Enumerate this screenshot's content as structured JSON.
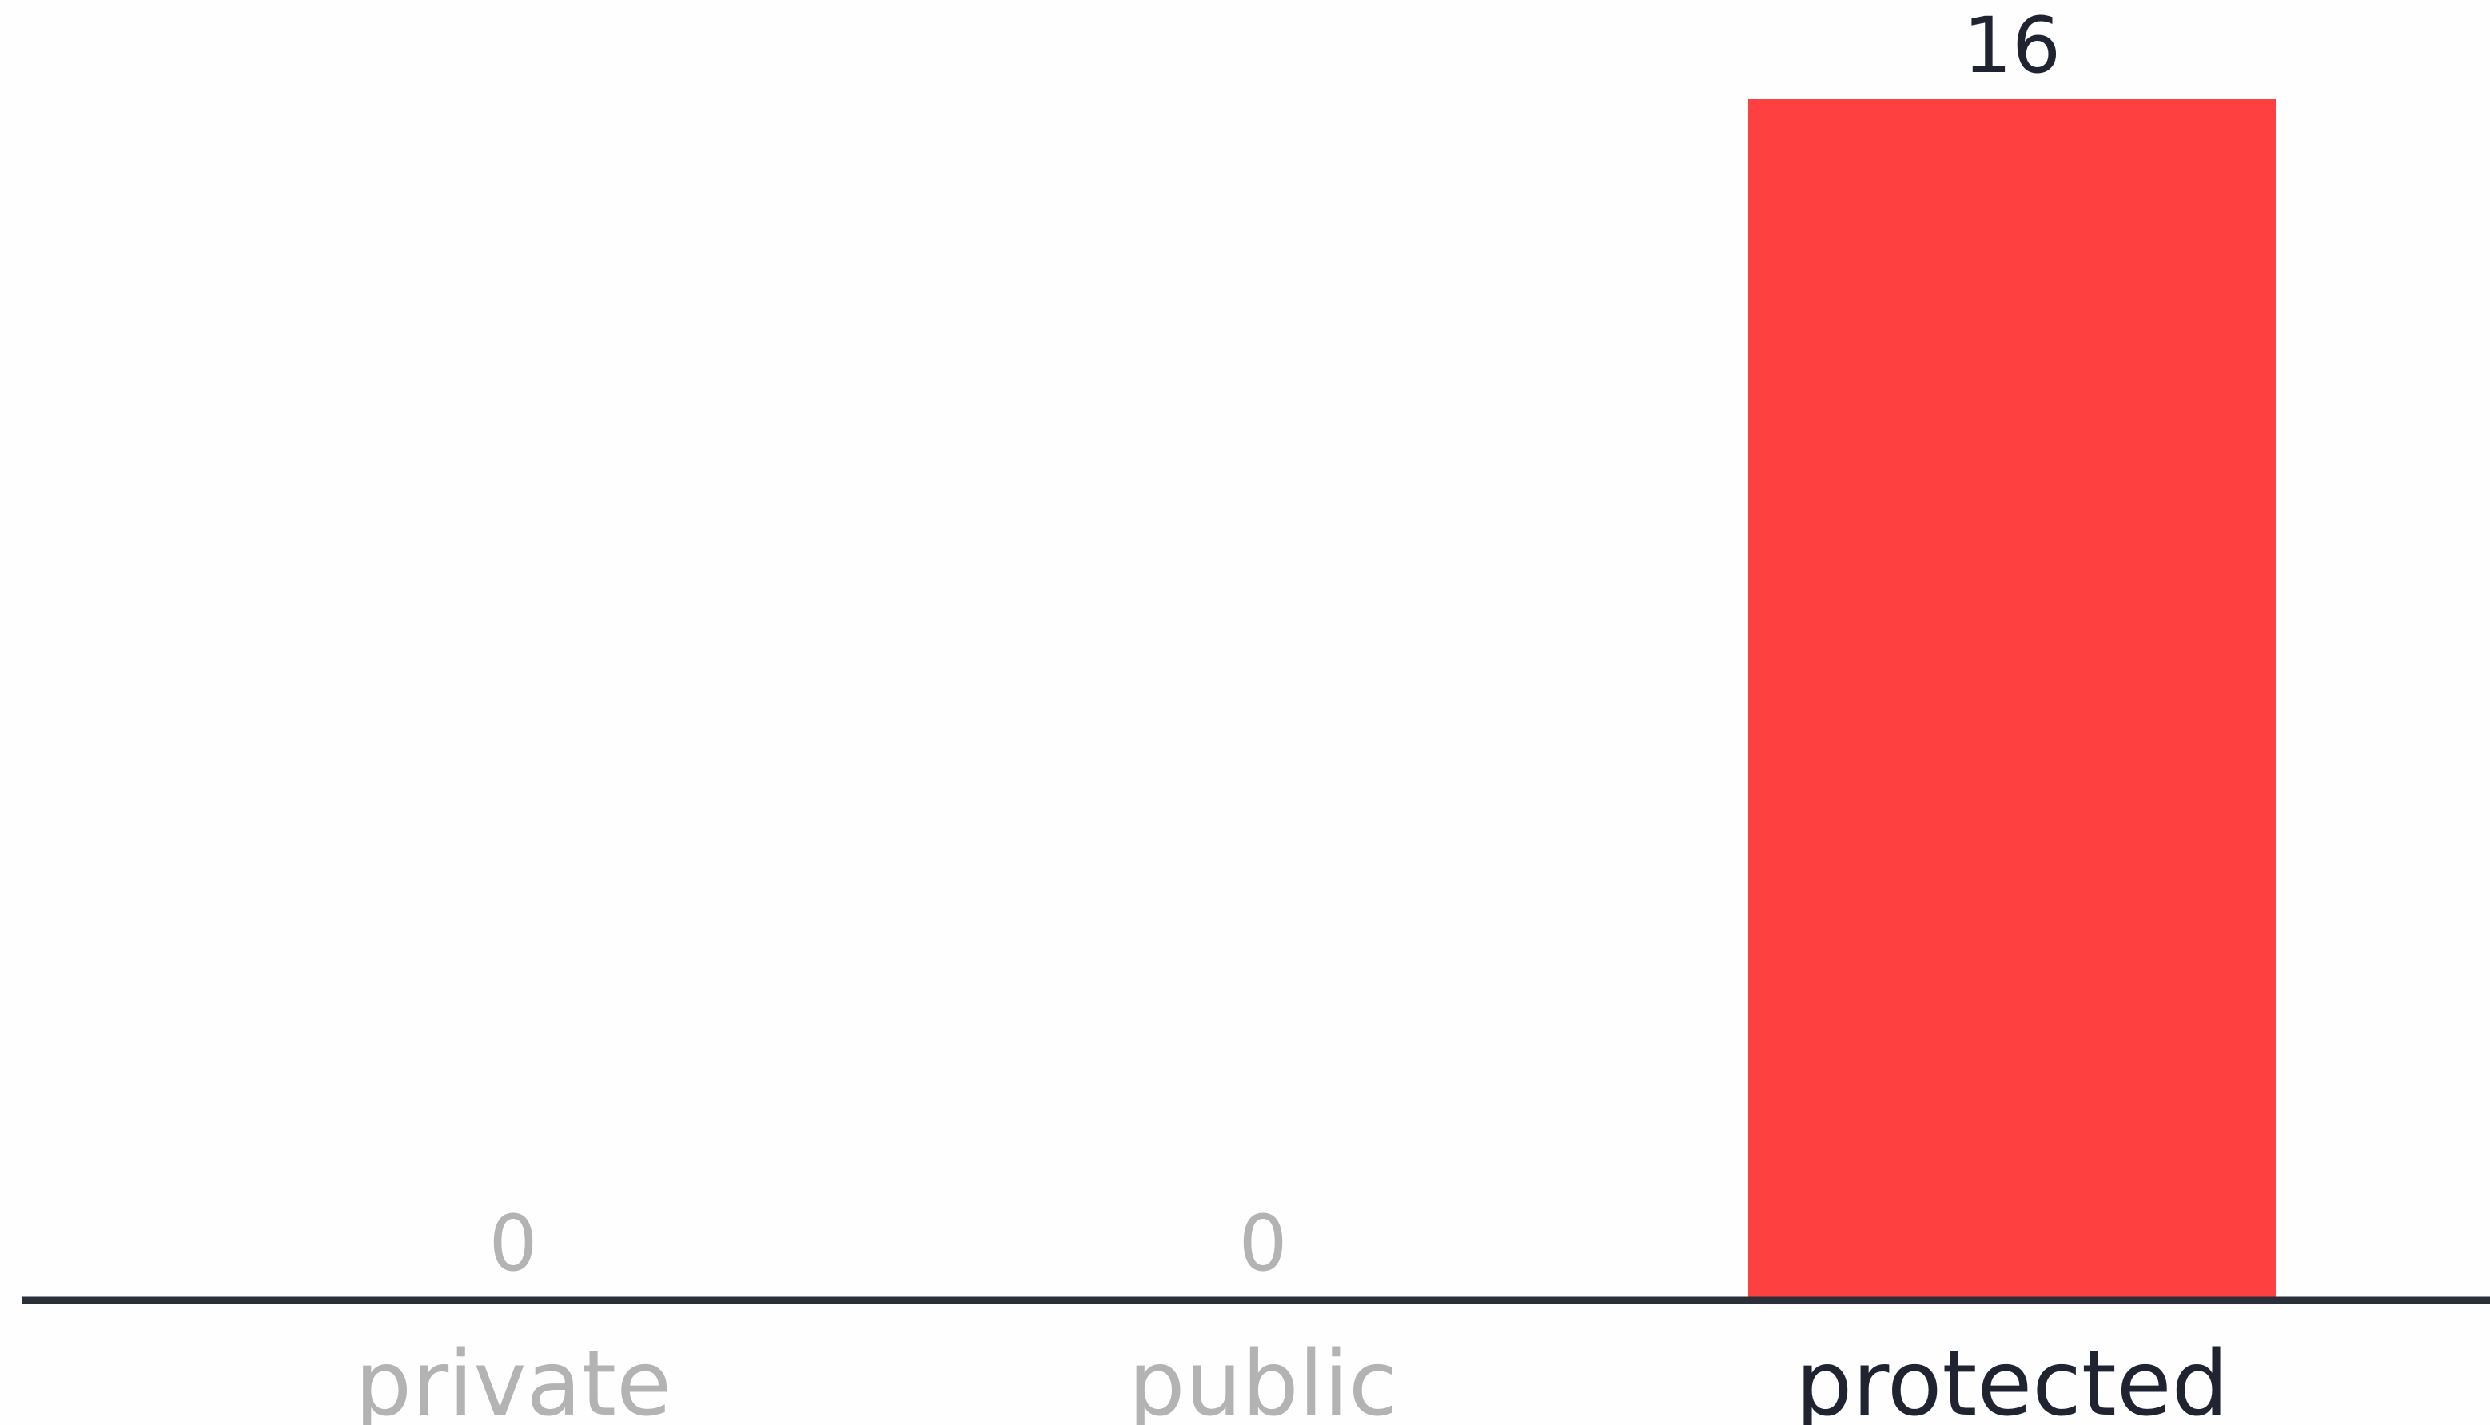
{
  "chart_data": {
    "type": "bar",
    "categories": [
      "private",
      "public",
      "protected"
    ],
    "values": [
      0,
      0,
      16
    ],
    "value_labels": [
      "0",
      "0",
      "16"
    ],
    "title": "",
    "xlabel": "",
    "ylabel": "",
    "ylim": [
      0,
      16
    ],
    "grid": false,
    "colors": {
      "bar": "#ff4040",
      "axis": "#2b2f3a",
      "highlight_text": "#1f2430",
      "muted_text": "#b3b3b3"
    }
  }
}
